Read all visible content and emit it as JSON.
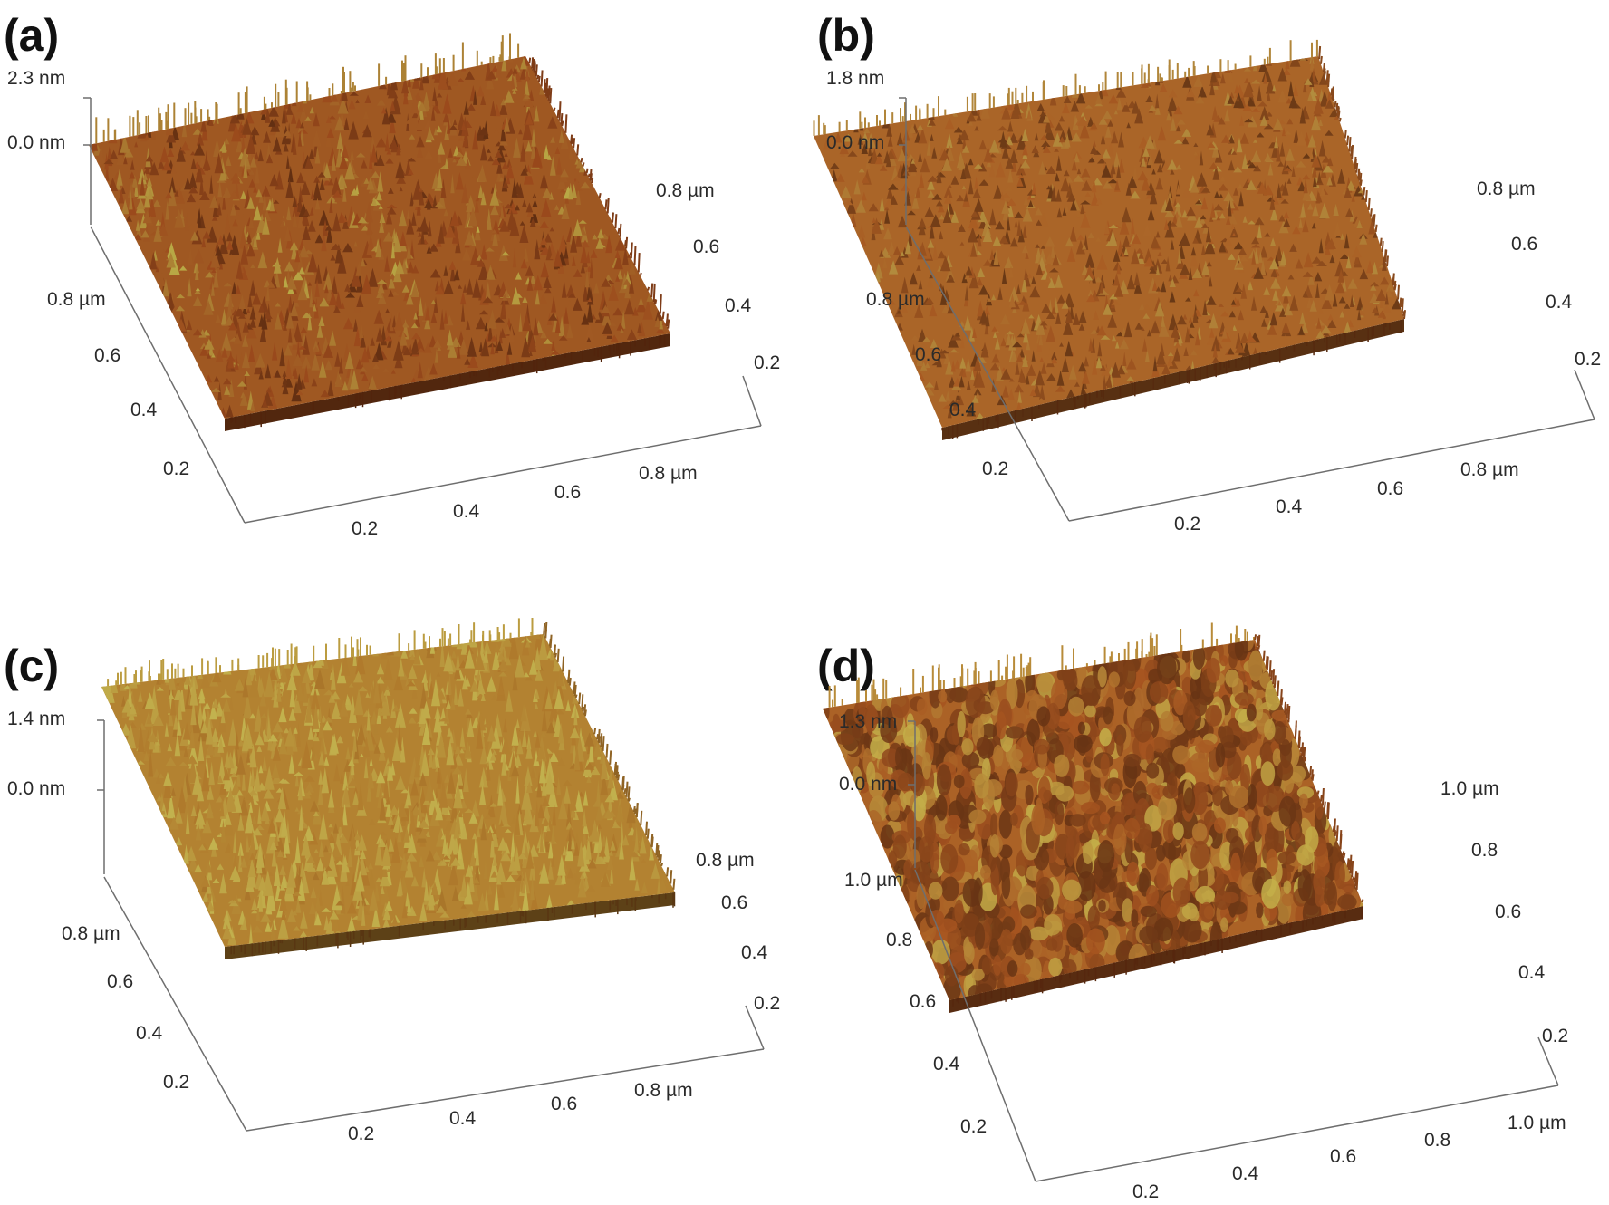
{
  "panels": [
    {
      "label": "(a)",
      "z_top": "2.3 nm",
      "z_zero": "0.0 nm",
      "left_axis_ticks": [
        "0.8 µm",
        "0.6",
        "0.4",
        "0.2"
      ],
      "bottom_axis_ticks": [
        "0.2",
        "0.4",
        "0.6",
        "0.8 µm"
      ],
      "right_axis_ticks": [
        "0.8 µm",
        "0.6",
        "0.4",
        "0.2"
      ],
      "surface_style": "ridged-dark",
      "base_color": "#9b4a1c",
      "highlight_color": "#b8a845"
    },
    {
      "label": "(b)",
      "z_top": "1.8 nm",
      "z_zero": "0.0 nm",
      "left_axis_ticks": [
        "0.8 µm",
        "0.6",
        "0.4",
        "0.2"
      ],
      "bottom_axis_ticks": [
        "0.2",
        "0.4",
        "0.6",
        "0.8 µm"
      ],
      "right_axis_ticks": [
        "0.8 µm",
        "0.6",
        "0.4",
        "0.2"
      ],
      "surface_style": "fine-grain",
      "base_color": "#a85a22",
      "highlight_color": "#b7a44a"
    },
    {
      "label": "(c)",
      "z_top": "1.4 nm",
      "z_zero": "0.0 nm",
      "left_axis_ticks": [
        "0.8 µm",
        "0.6",
        "0.4",
        "0.2"
      ],
      "bottom_axis_ticks": [
        "0.2",
        "0.4",
        "0.6",
        "0.8 µm"
      ],
      "right_axis_ticks": [
        "0.8 µm",
        "0.6",
        "0.4",
        "0.2"
      ],
      "surface_style": "spiky-yellow",
      "base_color": "#b07a2c",
      "highlight_color": "#c2b24e"
    },
    {
      "label": "(d)",
      "z_top": "1.3 nm",
      "z_zero": "0.0 nm",
      "left_axis_ticks": [
        "1.0 µm",
        "0.8",
        "0.6",
        "0.4",
        "0.2"
      ],
      "bottom_axis_ticks": [
        "0.2",
        "0.4",
        "0.6",
        "0.8",
        "1.0 µm"
      ],
      "right_axis_ticks": [
        "1.0 µm",
        "0.8",
        "0.6",
        "0.4",
        "0.2"
      ],
      "surface_style": "grainy-bumps",
      "base_color": "#a65420",
      "highlight_color": "#c4b04a"
    }
  ]
}
